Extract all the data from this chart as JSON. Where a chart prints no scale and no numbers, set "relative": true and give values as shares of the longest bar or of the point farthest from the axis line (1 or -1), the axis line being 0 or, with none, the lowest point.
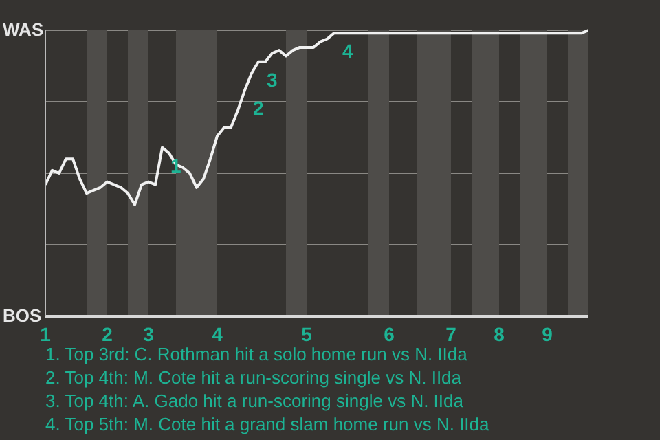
{
  "chart_data": {
    "type": "line",
    "color": "#f0f0f0",
    "marker": "none",
    "grid": "y",
    "relative": true,
    "categories": [
      "1",
      null,
      null,
      null,
      null,
      null,
      null,
      null,
      null,
      "2",
      null,
      null,
      null,
      null,
      null,
      "3",
      null,
      null,
      null,
      null,
      null,
      null,
      null,
      null,
      null,
      "4",
      null,
      null,
      null,
      null,
      null,
      null,
      null,
      null,
      null,
      null,
      null,
      null,
      "5",
      null,
      null,
      null,
      null,
      null,
      null,
      null,
      null,
      null,
      null,
      null,
      "6",
      null,
      null,
      null,
      null,
      null,
      null,
      null,
      null,
      "7",
      null,
      null,
      null,
      null,
      null,
      null,
      "8",
      null,
      null,
      null,
      null,
      null,
      null,
      "9",
      null,
      null,
      null,
      null,
      null,
      null
    ],
    "values": [
      0.46,
      0.51,
      0.5,
      0.55,
      0.55,
      0.48,
      0.43,
      0.44,
      0.45,
      0.47,
      0.46,
      0.45,
      0.43,
      0.39,
      0.46,
      0.47,
      0.46,
      0.59,
      0.57,
      0.53,
      0.52,
      0.5,
      0.45,
      0.48,
      0.55,
      0.63,
      0.66,
      0.66,
      0.72,
      0.79,
      0.85,
      0.89,
      0.89,
      0.92,
      0.93,
      0.91,
      0.93,
      0.94,
      0.94,
      0.94,
      0.96,
      0.97,
      0.99,
      0.99,
      0.99,
      0.99,
      0.99,
      0.99,
      0.99,
      0.99,
      0.99,
      0.99,
      0.99,
      0.99,
      0.99,
      0.99,
      0.99,
      0.99,
      0.99,
      0.99,
      0.99,
      0.99,
      0.99,
      0.99,
      0.99,
      0.99,
      0.99,
      0.99,
      0.99,
      0.99,
      0.99,
      0.99,
      0.99,
      0.99,
      0.99,
      0.99,
      0.99,
      0.99,
      0.99,
      1
    ],
    "annotations": [
      "WAS",
      "BOS",
      "1",
      "2",
      "3",
      "4",
      "1. Top 3rd: C. Rothman hit a solo home run vs N. IIda",
      "2. Top 4th: M. Cote hit a run-scoring single vs N. IIda",
      "3. Top 4th: A. Gado hit a run-scoring single vs N. IIda",
      "4. Top 5th: M. Cote hit a grand slam home run vs N. IIda"
    ]
  }
}
